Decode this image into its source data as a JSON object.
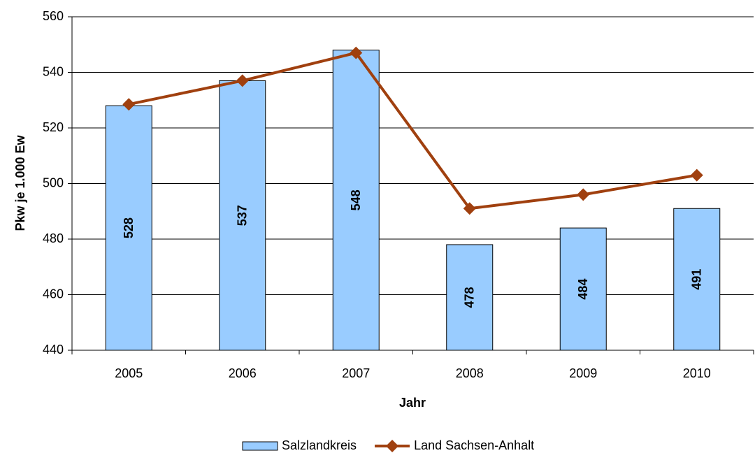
{
  "chart_data": {
    "type": "combo",
    "x_label": "Jahr",
    "y_label": "Pkw je 1.000 Ew",
    "categories": [
      "2005",
      "2006",
      "2007",
      "2008",
      "2009",
      "2010"
    ],
    "series": [
      {
        "name": "Salzlandkreis",
        "type": "bar",
        "color": "#99ccff",
        "values": [
          528,
          537,
          548,
          478,
          484,
          491
        ]
      },
      {
        "name": "Land Sachsen-Anhalt",
        "type": "line",
        "color": "#a0400f",
        "values": [
          528.5,
          537,
          547,
          491,
          496,
          503
        ]
      }
    ],
    "ylim": [
      440,
      560
    ],
    "yticks": [
      440,
      460,
      480,
      500,
      520,
      540,
      560
    ],
    "grid": true,
    "legend": "bottom"
  }
}
